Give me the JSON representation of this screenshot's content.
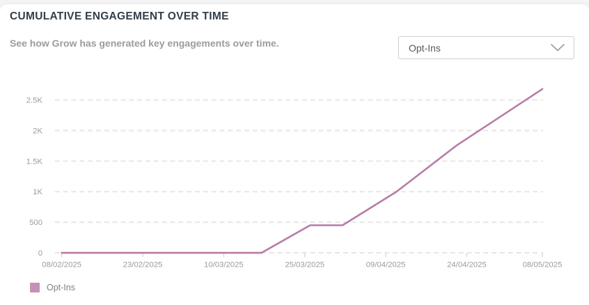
{
  "header": {
    "title": "CUMULATIVE ENGAGEMENT OVER TIME",
    "subtitle": "See how Grow has generated key engagements over time."
  },
  "metric_dropdown": {
    "selected_value": "Opt-Ins",
    "icon": "chevron-down-icon"
  },
  "legend": {
    "items": [
      {
        "label": "Opt-Ins",
        "color": "#c592b7"
      }
    ]
  },
  "colors": {
    "line": "#b77ba7",
    "grid": "#e6e6e6",
    "axis_text": "#9b9b9b",
    "tick_mark": "#d0d0d0",
    "title_text": "#333e48",
    "subtitle_text": "#9c9c9c"
  },
  "chart_data": {
    "type": "line",
    "title": "Cumulative Engagement Over Time",
    "xlabel": "",
    "ylabel": "",
    "legend_position": "bottom-left",
    "grid": {
      "show": true,
      "style": "dashed",
      "color": "#e6e6e6"
    },
    "axis_text_color": "#9b9b9b",
    "ylim": [
      0,
      2800
    ],
    "y_ticks": [
      {
        "label": "0",
        "value": 0
      },
      {
        "label": "500",
        "value": 500
      },
      {
        "label": "1K",
        "value": 1000
      },
      {
        "label": "1.5K",
        "value": 1500
      },
      {
        "label": "2K",
        "value": 2000
      },
      {
        "label": "2.5K",
        "value": 2500
      }
    ],
    "x_ticks": [
      {
        "label": "08/02/2025",
        "day": 0
      },
      {
        "label": "23/02/2025",
        "day": 15
      },
      {
        "label": "10/03/2025",
        "day": 30
      },
      {
        "label": "25/03/2025",
        "day": 45
      },
      {
        "label": "09/04/2025",
        "day": 60
      },
      {
        "label": "24/04/2025",
        "day": 75
      },
      {
        "label": "08/05/2025",
        "day": 89
      }
    ],
    "series": [
      {
        "name": "Opt-Ins",
        "color": "#b77ba7",
        "points": [
          {
            "date": "08/02/2025",
            "day": 0,
            "value": 0
          },
          {
            "date": "17/03/2025",
            "day": 37,
            "value": 0
          },
          {
            "date": "26/03/2025",
            "day": 46,
            "value": 450
          },
          {
            "date": "01/04/2025",
            "day": 52,
            "value": 450
          },
          {
            "date": "11/04/2025",
            "day": 62,
            "value": 1000
          },
          {
            "date": "22/04/2025",
            "day": 73,
            "value": 1750
          },
          {
            "date": "08/05/2025",
            "day": 89,
            "value": 2680
          }
        ]
      }
    ]
  }
}
